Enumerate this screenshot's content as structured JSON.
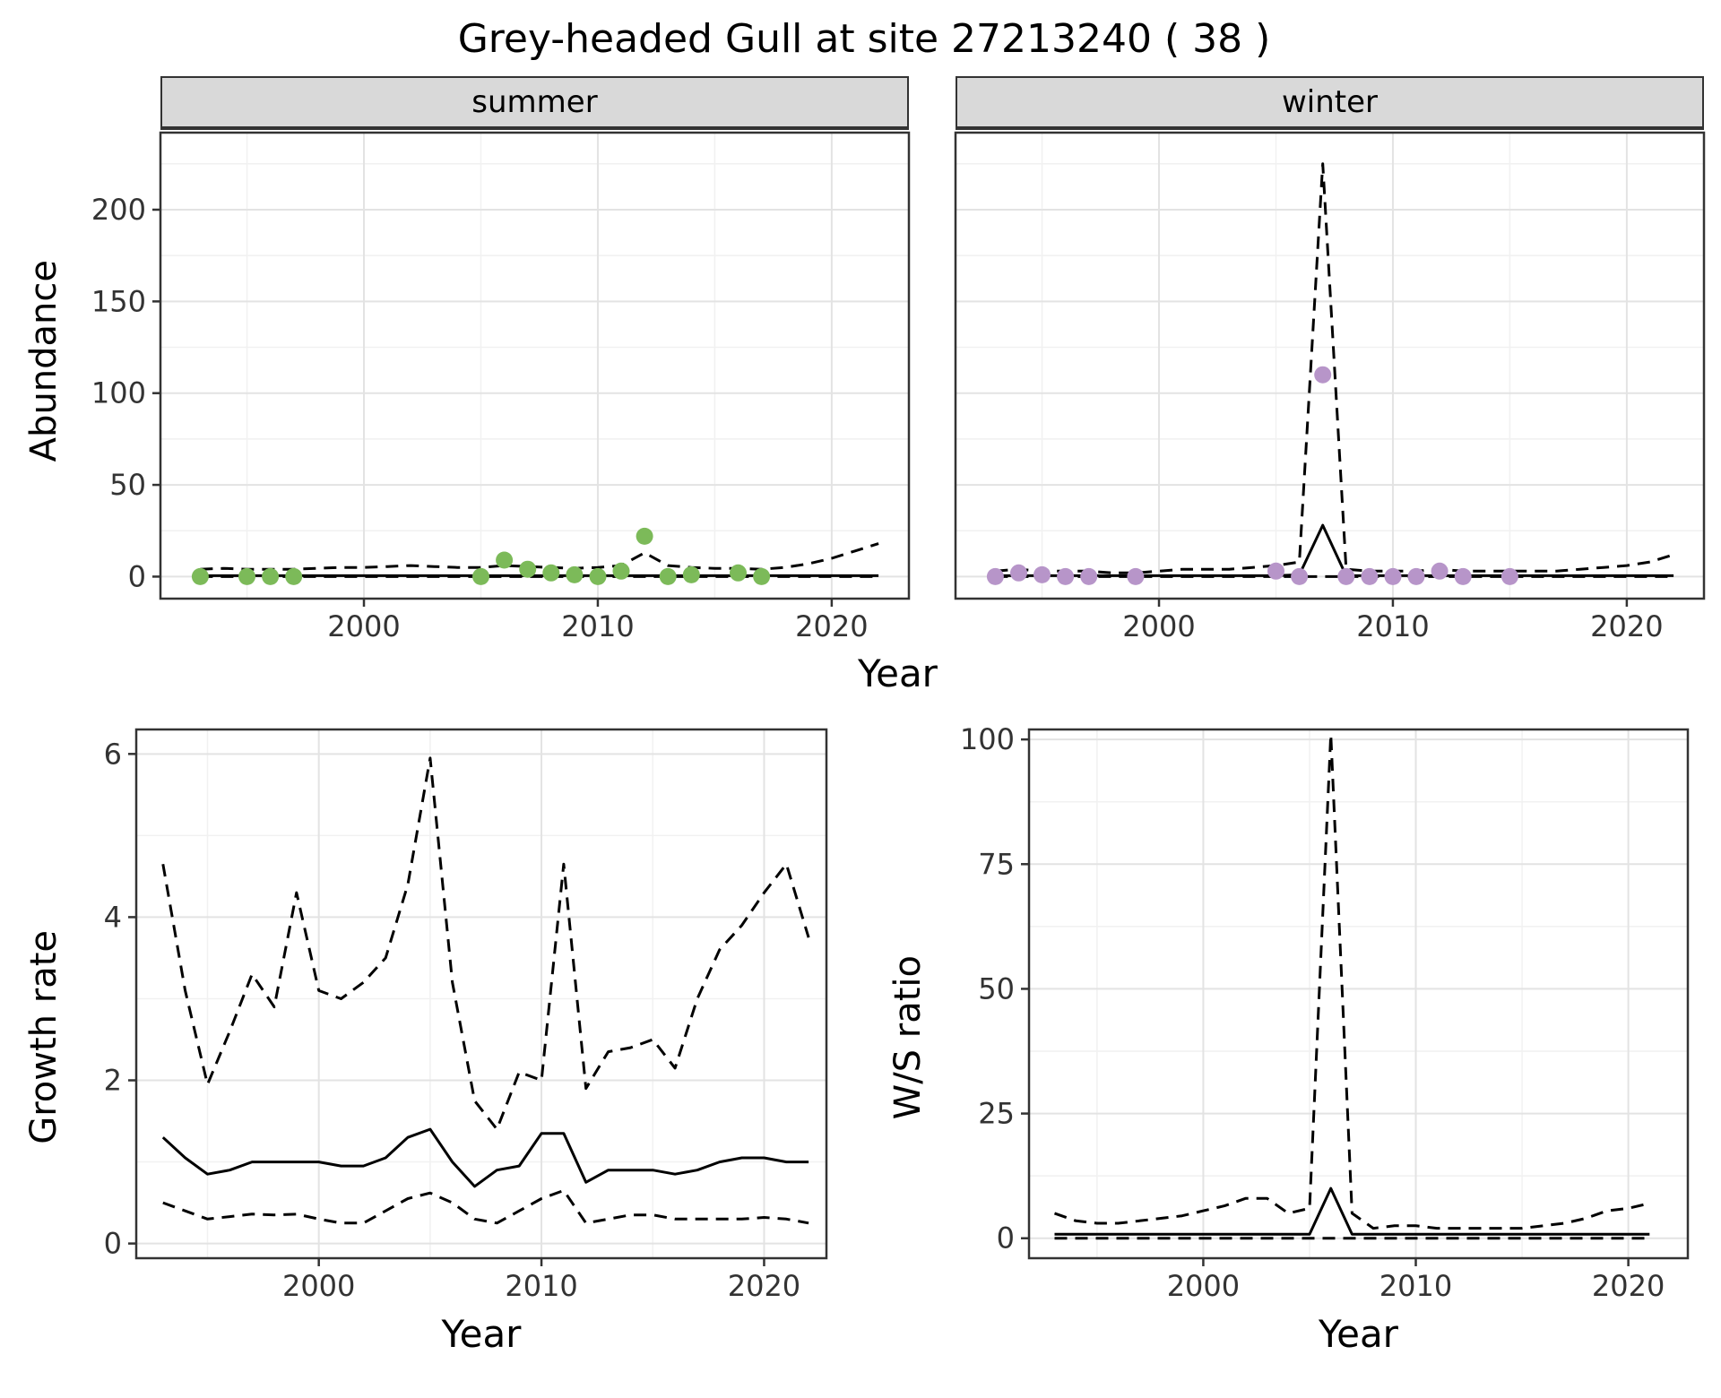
{
  "title": "Grey-headed Gull at site 27213240 ( 38 )",
  "colors": {
    "summer_point": "#7cba59",
    "winter_point": "#b795c9",
    "grid_major": "#e3e3e3",
    "grid_minor": "#f1f1f1",
    "panel_border": "#333333",
    "strip_bg": "#d9d9d9",
    "axis_text": "#333333",
    "line": "#000000"
  },
  "top": {
    "ylabel": "Abundance",
    "xlabel": "Year",
    "facets": [
      "summer",
      "winter"
    ]
  },
  "bottom": {
    "left": {
      "ylabel": "Growth rate",
      "xlabel": "Year"
    },
    "right": {
      "ylabel": "W/S ratio",
      "xlabel": "Year"
    }
  },
  "chart_data": [
    {
      "id": "summer",
      "type": "line",
      "facet": "summer",
      "xlim": [
        1991.3,
        2023.3
      ],
      "ylim": [
        -12,
        242
      ],
      "xticks": [
        2000,
        2010,
        2020
      ],
      "xminor": [
        1995,
        2005,
        2015
      ],
      "yticks": [
        0,
        50,
        100,
        150,
        200
      ],
      "yminor": [
        25,
        75,
        125,
        175,
        225
      ],
      "show_ytick_labels": true,
      "series": [
        {
          "name": "upper-ci-line",
          "style": "dashed",
          "x": [
            1993,
            1994,
            1995,
            1996,
            1997,
            1998,
            1999,
            2000,
            2001,
            2002,
            2003,
            2004,
            2005,
            2006,
            2007,
            2008,
            2009,
            2010,
            2011,
            2012,
            2013,
            2014,
            2015,
            2016,
            2017,
            2018,
            2019,
            2020,
            2021,
            2022
          ],
          "y": [
            4,
            4.5,
            4,
            4,
            4,
            4.5,
            5,
            5,
            5.5,
            6,
            5.5,
            5,
            5,
            6,
            5.5,
            5,
            4.5,
            5,
            6,
            13,
            6,
            5,
            4.5,
            4.5,
            4,
            5,
            7,
            10,
            14,
            18
          ]
        },
        {
          "name": "lower-ci-line",
          "style": "dashed",
          "x": [
            1993,
            2022
          ],
          "y": [
            0,
            0
          ]
        },
        {
          "name": "median-line",
          "style": "solid",
          "x": [
            1993,
            2022
          ],
          "y": [
            0.5,
            0.5
          ]
        }
      ],
      "points": {
        "color_key": "summer_point",
        "x": [
          1993,
          1995,
          1996,
          1997,
          2005,
          2006,
          2007,
          2008,
          2009,
          2010,
          2011,
          2012,
          2013,
          2014,
          2016,
          2017
        ],
        "y": [
          0,
          0,
          0,
          0,
          0,
          9,
          4,
          2,
          1,
          0,
          3,
          22,
          0,
          1,
          2,
          0
        ]
      }
    },
    {
      "id": "winter",
      "type": "line",
      "facet": "winter",
      "xlim": [
        1991.3,
        2023.3
      ],
      "ylim": [
        -12,
        242
      ],
      "xticks": [
        2000,
        2010,
        2020
      ],
      "xminor": [
        1995,
        2005,
        2015
      ],
      "yticks": [
        0,
        50,
        100,
        150,
        200
      ],
      "yminor": [
        25,
        75,
        125,
        175,
        225
      ],
      "show_ytick_labels": false,
      "series": [
        {
          "name": "upper-ci-line",
          "style": "dashed",
          "x": [
            1993,
            1994,
            1995,
            1996,
            1997,
            1998,
            1999,
            2000,
            2001,
            2002,
            2003,
            2004,
            2005,
            2006,
            2007,
            2008,
            2009,
            2010,
            2011,
            2012,
            2013,
            2014,
            2015,
            2016,
            2017,
            2018,
            2019,
            2020,
            2021,
            2022
          ],
          "y": [
            3,
            4,
            3,
            3,
            3,
            2,
            2,
            3,
            4,
            4,
            4,
            5,
            6,
            8,
            225,
            4,
            3,
            3,
            3,
            4,
            3,
            3,
            3,
            3,
            3,
            4,
            5,
            6,
            8,
            12
          ]
        },
        {
          "name": "lower-ci-line",
          "style": "dashed",
          "x": [
            1993,
            2022
          ],
          "y": [
            0,
            0
          ]
        },
        {
          "name": "median-line",
          "style": "solid",
          "x": [
            1993,
            2005,
            2006,
            2007,
            2008,
            2022
          ],
          "y": [
            0.5,
            0.5,
            1,
            28,
            0.5,
            0.5
          ]
        }
      ],
      "points": {
        "color_key": "winter_point",
        "x": [
          1993,
          1994,
          1995,
          1996,
          1997,
          1999,
          2005,
          2006,
          2007,
          2008,
          2009,
          2010,
          2011,
          2012,
          2013,
          2015
        ],
        "y": [
          0,
          2,
          1,
          0,
          0,
          0,
          3,
          0,
          110,
          0,
          0,
          0,
          0,
          3,
          0,
          0
        ]
      }
    },
    {
      "id": "growth",
      "type": "line",
      "xlim": [
        1991.8,
        2022.8
      ],
      "ylim": [
        -0.18,
        6.3
      ],
      "xticks": [
        2000,
        2010,
        2020
      ],
      "xminor": [
        1995,
        2005,
        2015
      ],
      "yticks": [
        0,
        2,
        4,
        6
      ],
      "yminor": [
        1,
        3,
        5
      ],
      "show_ytick_labels": true,
      "series": [
        {
          "name": "upper-ci-line",
          "style": "dashed",
          "x": [
            1993,
            1994,
            1995,
            1996,
            1997,
            1998,
            1999,
            2000,
            2001,
            2002,
            2003,
            2004,
            2005,
            2006,
            2007,
            2008,
            2009,
            2010,
            2011,
            2012,
            2013,
            2014,
            2015,
            2016,
            2017,
            2018,
            2019,
            2020,
            2021,
            2022
          ],
          "y": [
            4.65,
            3.1,
            1.95,
            2.6,
            3.3,
            2.9,
            4.3,
            3.1,
            3.0,
            3.2,
            3.5,
            4.4,
            5.95,
            3.2,
            1.75,
            1.4,
            2.1,
            2.0,
            4.65,
            1.9,
            2.35,
            2.4,
            2.5,
            2.15,
            3.0,
            3.6,
            3.9,
            4.3,
            4.65,
            3.75
          ]
        },
        {
          "name": "lower-ci-line",
          "style": "dashed",
          "x": [
            1993,
            1994,
            1995,
            1996,
            1997,
            1998,
            1999,
            2000,
            2001,
            2002,
            2003,
            2004,
            2005,
            2006,
            2007,
            2008,
            2009,
            2010,
            2011,
            2012,
            2013,
            2014,
            2015,
            2016,
            2017,
            2018,
            2019,
            2020,
            2021,
            2022
          ],
          "y": [
            0.5,
            0.4,
            0.3,
            0.33,
            0.36,
            0.35,
            0.36,
            0.3,
            0.25,
            0.25,
            0.4,
            0.55,
            0.62,
            0.5,
            0.3,
            0.25,
            0.4,
            0.55,
            0.65,
            0.25,
            0.3,
            0.35,
            0.35,
            0.3,
            0.3,
            0.3,
            0.3,
            0.32,
            0.3,
            0.25
          ]
        },
        {
          "name": "median-line",
          "style": "solid",
          "x": [
            1993,
            1994,
            1995,
            1996,
            1997,
            1998,
            1999,
            2000,
            2001,
            2002,
            2003,
            2004,
            2005,
            2006,
            2007,
            2008,
            2009,
            2010,
            2011,
            2012,
            2013,
            2014,
            2015,
            2016,
            2017,
            2018,
            2019,
            2020,
            2021,
            2022
          ],
          "y": [
            1.3,
            1.05,
            0.85,
            0.9,
            1.0,
            1.0,
            1.0,
            1.0,
            0.95,
            0.95,
            1.05,
            1.3,
            1.4,
            1.0,
            0.7,
            0.9,
            0.95,
            1.35,
            1.35,
            0.75,
            0.9,
            0.9,
            0.9,
            0.85,
            0.9,
            1.0,
            1.05,
            1.05,
            1.0,
            1.0
          ]
        }
      ]
    },
    {
      "id": "ws",
      "type": "line",
      "xlim": [
        1991.8,
        2022.8
      ],
      "ylim": [
        -4,
        102
      ],
      "xticks": [
        2000,
        2010,
        2020
      ],
      "xminor": [
        1995,
        2005,
        2015
      ],
      "yticks": [
        0,
        25,
        50,
        75,
        100
      ],
      "yminor": [
        12.5,
        37.5,
        62.5,
        87.5
      ],
      "show_ytick_labels": true,
      "series": [
        {
          "name": "upper-ci-line",
          "style": "dashed",
          "x": [
            1993,
            1994,
            1995,
            1996,
            1997,
            1998,
            1999,
            2000,
            2001,
            2002,
            2003,
            2004,
            2005,
            2006,
            2007,
            2008,
            2009,
            2010,
            2011,
            2012,
            2013,
            2014,
            2015,
            2016,
            2017,
            2018,
            2019,
            2020,
            2021
          ],
          "y": [
            5,
            3.5,
            3,
            3,
            3.5,
            4,
            4.5,
            5.5,
            6.5,
            8,
            8,
            5,
            6,
            101,
            5,
            2,
            2.5,
            2.5,
            2,
            2,
            2,
            2,
            2,
            2.5,
            3,
            4,
            5.5,
            6,
            7
          ]
        },
        {
          "name": "lower-ci-line",
          "style": "dashed",
          "x": [
            1993,
            2021
          ],
          "y": [
            0,
            0
          ]
        },
        {
          "name": "median-line",
          "style": "solid",
          "x": [
            1993,
            2005,
            2006,
            2007,
            2021
          ],
          "y": [
            0.8,
            0.8,
            10,
            0.8,
            0.8
          ]
        }
      ]
    }
  ]
}
